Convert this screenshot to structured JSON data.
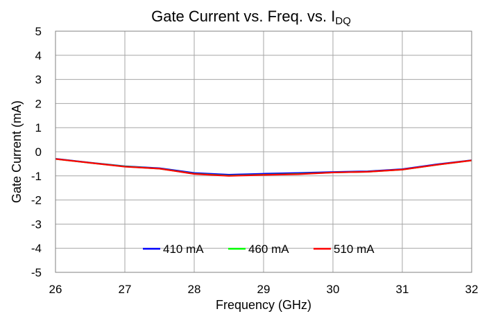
{
  "chart_data": {
    "type": "line",
    "title": "Gate Current vs. Freq. vs. I",
    "title_subscript": "DQ",
    "xlabel": "Frequency (GHz)",
    "ylabel": "Gate Current (mA)",
    "xlim": [
      26,
      32
    ],
    "ylim": [
      -5,
      5
    ],
    "x_ticks": [
      26,
      27,
      28,
      29,
      30,
      31,
      32
    ],
    "y_ticks": [
      5,
      4,
      3,
      2,
      1,
      0,
      -1,
      -2,
      -3,
      -4,
      -5
    ],
    "grid": true,
    "legend_position": "bottom-center",
    "x": [
      26,
      26.5,
      27,
      27.5,
      28,
      28.5,
      29,
      29.5,
      30,
      30.5,
      31,
      31.5,
      32
    ],
    "series": [
      {
        "name": "410 mA",
        "color": "#0000ff",
        "values": [
          -0.29,
          -0.45,
          -0.6,
          -0.68,
          -0.88,
          -0.95,
          -0.91,
          -0.88,
          -0.84,
          -0.81,
          -0.72,
          -0.52,
          -0.35
        ]
      },
      {
        "name": "460 mA",
        "color": "#00ff00",
        "values": [
          -0.3,
          -0.46,
          -0.61,
          -0.7,
          -0.91,
          -0.99,
          -0.95,
          -0.92,
          -0.86,
          -0.83,
          -0.74,
          -0.54,
          -0.36
        ]
      },
      {
        "name": "510 mA",
        "color": "#ff0000",
        "values": [
          -0.3,
          -0.46,
          -0.62,
          -0.7,
          -0.92,
          -1.0,
          -0.96,
          -0.93,
          -0.86,
          -0.83,
          -0.74,
          -0.54,
          -0.36
        ]
      }
    ]
  }
}
